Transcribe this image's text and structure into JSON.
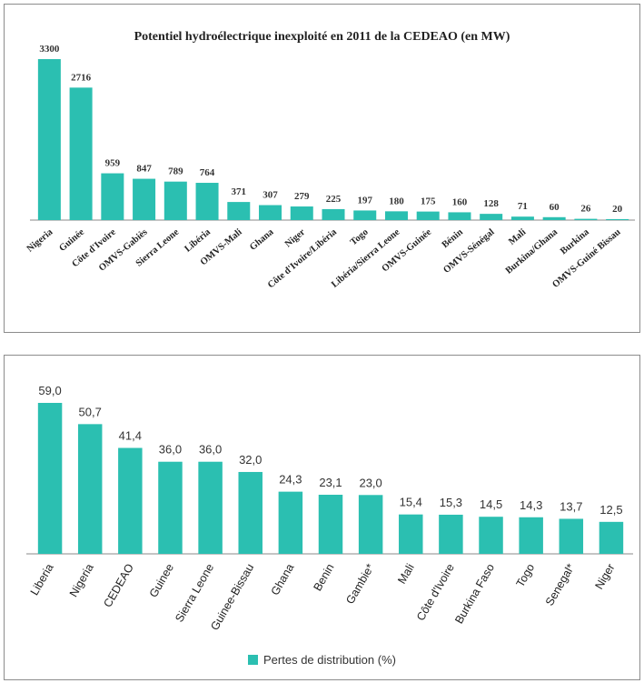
{
  "colors": {
    "bar": "#2bbfb1",
    "axis": "#888888"
  },
  "chart_data": [
    {
      "type": "bar",
      "title": "Potentiel hydroélectrique inexploité en 2011 de la CEDEAO (en MW)",
      "categories": [
        "Nigeria",
        "Guinée",
        "Côte d'Ivoire",
        "OMVS-Gabiès",
        "Sierra Leone",
        "Libéria",
        "OMVS-Mali",
        "Ghana",
        "Niger",
        "Côte d'Ivoire/Libéria",
        "Togo",
        "Libéria/Sierra Leone",
        "OMVS-Guinée",
        "Bénin",
        "OMVS-Sénégal",
        "Mali",
        "Burkina/Ghana",
        "Burkina",
        "OMVS-Guiné Bissau"
      ],
      "values": [
        3300,
        2716,
        959,
        847,
        789,
        764,
        371,
        307,
        279,
        225,
        197,
        180,
        175,
        160,
        128,
        71,
        60,
        26,
        20
      ],
      "value_labels": [
        "3300",
        "2716",
        "959",
        "847",
        "789",
        "764",
        "371",
        "307",
        "279",
        "225",
        "197",
        "180",
        "175",
        "160",
        "128",
        "71",
        "60",
        "26",
        "20"
      ],
      "ylim": [
        0,
        3300
      ],
      "grid": false,
      "legend": "none"
    },
    {
      "type": "bar",
      "title": "",
      "categories": [
        "Liberia",
        "Nigeria",
        "CEDEAO",
        "Guinee",
        "Sierra Leone",
        "Guinee-Bissau",
        "Ghana",
        "Benin",
        "Gambie*",
        "Mali",
        "Côte d'Ivoire",
        "Burkina Faso",
        "Togo",
        "Senegal*",
        "Niger"
      ],
      "values": [
        59.0,
        50.7,
        41.4,
        36.0,
        36.0,
        32.0,
        24.3,
        23.1,
        23.0,
        15.4,
        15.3,
        14.5,
        14.3,
        13.7,
        12.5
      ],
      "value_labels": [
        "59,0",
        "50,7",
        "41,4",
        "36,0",
        "36,0",
        "32,0",
        "24,3",
        "23,1",
        "23,0",
        "15,4",
        "15,3",
        "14,5",
        "14,3",
        "13,7",
        "12,5"
      ],
      "series": [
        {
          "name": "Pertes de distribution (%)"
        }
      ],
      "ylim": [
        0,
        59
      ],
      "grid": false,
      "legend": "bottom"
    }
  ]
}
